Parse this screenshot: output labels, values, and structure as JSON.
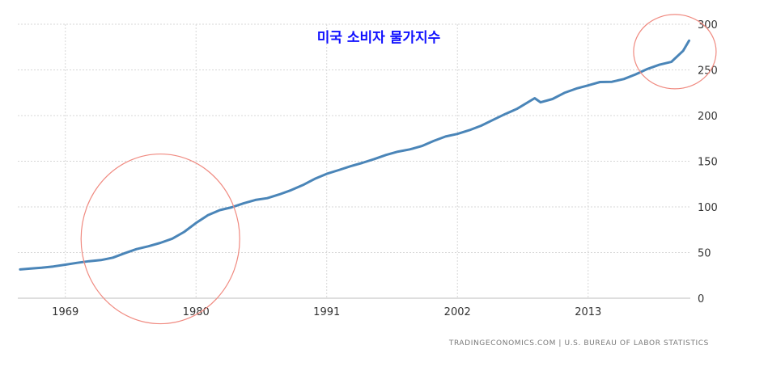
{
  "chart_data": {
    "type": "line",
    "title": "미국 소비자 물가지수",
    "source": "TRADINGECONOMICS.COM | U.S. BUREAU OF LABOR STATISTICS",
    "x_ticks": [
      "1969",
      "1980",
      "1991",
      "2002",
      "2013"
    ],
    "y_ticks": [
      "0",
      "50",
      "100",
      "150",
      "200",
      "250",
      "300"
    ],
    "xlim": [
      1965,
      2021.6
    ],
    "ylim": [
      0,
      300
    ],
    "grid": true,
    "colors": {
      "line": "#4a85b8",
      "highlight_circle": "#f08a80",
      "grid": "#d7d7d7",
      "title": "#1010ff"
    },
    "series": [
      {
        "values": [
          [
            1965.2,
            31.5
          ],
          [
            1966,
            32.4
          ],
          [
            1967,
            33.4
          ],
          [
            1968,
            34.8
          ],
          [
            1969,
            36.7
          ],
          [
            1970,
            38.8
          ],
          [
            1971,
            40.5
          ],
          [
            1972,
            41.8
          ],
          [
            1973,
            44.4
          ],
          [
            1974,
            49.3
          ],
          [
            1975,
            53.8
          ],
          [
            1976,
            56.9
          ],
          [
            1977,
            60.6
          ],
          [
            1978,
            65.2
          ],
          [
            1979,
            72.6
          ],
          [
            1980,
            82.4
          ],
          [
            1981,
            90.9
          ],
          [
            1982,
            96.5
          ],
          [
            1983,
            99.6
          ],
          [
            1984,
            103.9
          ],
          [
            1985,
            107.6
          ],
          [
            1986,
            109.6
          ],
          [
            1987,
            113.6
          ],
          [
            1988,
            118.3
          ],
          [
            1989,
            124.0
          ],
          [
            1990,
            130.7
          ],
          [
            1991,
            136.2
          ],
          [
            1992,
            140.3
          ],
          [
            1993,
            144.5
          ],
          [
            1994,
            148.2
          ],
          [
            1995,
            152.4
          ],
          [
            1996,
            156.9
          ],
          [
            1997,
            160.5
          ],
          [
            1998,
            163.0
          ],
          [
            1999,
            166.6
          ],
          [
            2000,
            172.2
          ],
          [
            2001,
            177.1
          ],
          [
            2002,
            179.9
          ],
          [
            2003,
            184.0
          ],
          [
            2004,
            188.9
          ],
          [
            2005,
            195.3
          ],
          [
            2006,
            201.6
          ],
          [
            2007,
            207.3
          ],
          [
            2008.5,
            219.0
          ],
          [
            2009,
            214.5
          ],
          [
            2010,
            218.1
          ],
          [
            2011,
            224.9
          ],
          [
            2012,
            229.6
          ],
          [
            2013,
            233.0
          ],
          [
            2014,
            236.7
          ],
          [
            2015,
            237.0
          ],
          [
            2016,
            240.0
          ],
          [
            2017,
            245.1
          ],
          [
            2018,
            251.1
          ],
          [
            2019,
            255.7
          ],
          [
            2020,
            258.8
          ],
          [
            2021,
            271.0
          ],
          [
            2021.5,
            282.0
          ]
        ]
      }
    ],
    "annotations": [
      {
        "shape": "circle",
        "around": [
          1977,
          65
        ]
      },
      {
        "shape": "circle",
        "around": [
          2020.3,
          270
        ]
      }
    ]
  }
}
